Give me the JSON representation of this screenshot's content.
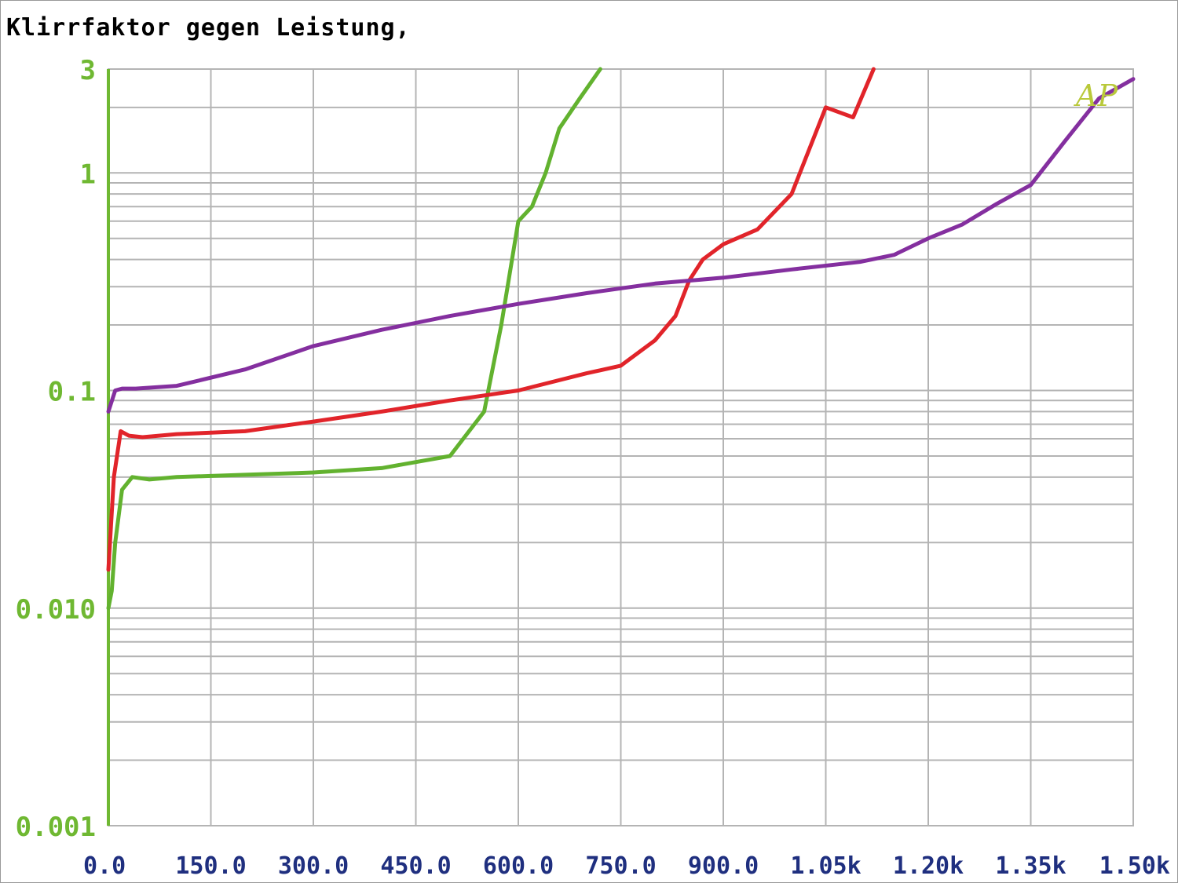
{
  "chart_data": {
    "type": "line",
    "title": "Klirrfaktor gegen Leistung,",
    "xlabel": "",
    "ylabel": "",
    "y_scale": "log",
    "xlim": [
      0,
      1500
    ],
    "ylim": [
      0.001,
      3
    ],
    "x_tick_labels": [
      "0.0",
      "150.0",
      "300.0",
      "450.0",
      "600.0",
      "750.0",
      "900.0",
      "1.05k",
      "1.20k",
      "1.35k",
      "1.50k"
    ],
    "x_tick_values": [
      0,
      150,
      300,
      450,
      600,
      750,
      900,
      1050,
      1200,
      1350,
      1500
    ],
    "y_tick_labels": [
      "3",
      "1",
      "0.1",
      "0.010",
      "0.001"
    ],
    "y_tick_values": [
      3,
      1,
      0.1,
      0.01,
      0.001
    ],
    "grid": true,
    "watermark": "AP",
    "colors": {
      "x_ticks": "#1f2f7f",
      "y_ticks": "#6fb832",
      "grid": "#b4b4b4",
      "watermark": "#b9c93a"
    },
    "series": [
      {
        "color": "#62b22f",
        "x": [
          0,
          5,
          10,
          20,
          35,
          60,
          100,
          200,
          300,
          400,
          500,
          550,
          575,
          600,
          620,
          640,
          660,
          690,
          720
        ],
        "y": [
          0.01,
          0.012,
          0.02,
          0.035,
          0.04,
          0.039,
          0.04,
          0.041,
          0.042,
          0.044,
          0.05,
          0.08,
          0.2,
          0.6,
          0.7,
          1.0,
          1.6,
          2.2,
          3.0
        ]
      },
      {
        "color": "#e1242a",
        "x": [
          0,
          8,
          18,
          30,
          50,
          100,
          200,
          300,
          400,
          500,
          600,
          700,
          750,
          800,
          830,
          850,
          870,
          900,
          950,
          1000,
          1050,
          1090,
          1120
        ],
        "y": [
          0.015,
          0.04,
          0.065,
          0.062,
          0.061,
          0.063,
          0.065,
          0.072,
          0.08,
          0.09,
          0.1,
          0.12,
          0.13,
          0.17,
          0.22,
          0.32,
          0.4,
          0.47,
          0.55,
          0.8,
          2.0,
          1.8,
          3.0
        ]
      },
      {
        "color": "#842f9f",
        "x": [
          0,
          10,
          20,
          40,
          100,
          200,
          300,
          400,
          500,
          600,
          700,
          800,
          900,
          1000,
          1100,
          1150,
          1200,
          1250,
          1300,
          1350,
          1400,
          1450,
          1500
        ],
        "y": [
          0.08,
          0.1,
          0.102,
          0.102,
          0.105,
          0.125,
          0.16,
          0.19,
          0.22,
          0.25,
          0.28,
          0.31,
          0.33,
          0.36,
          0.39,
          0.42,
          0.5,
          0.58,
          0.72,
          0.88,
          1.4,
          2.2,
          2.7
        ]
      }
    ]
  }
}
